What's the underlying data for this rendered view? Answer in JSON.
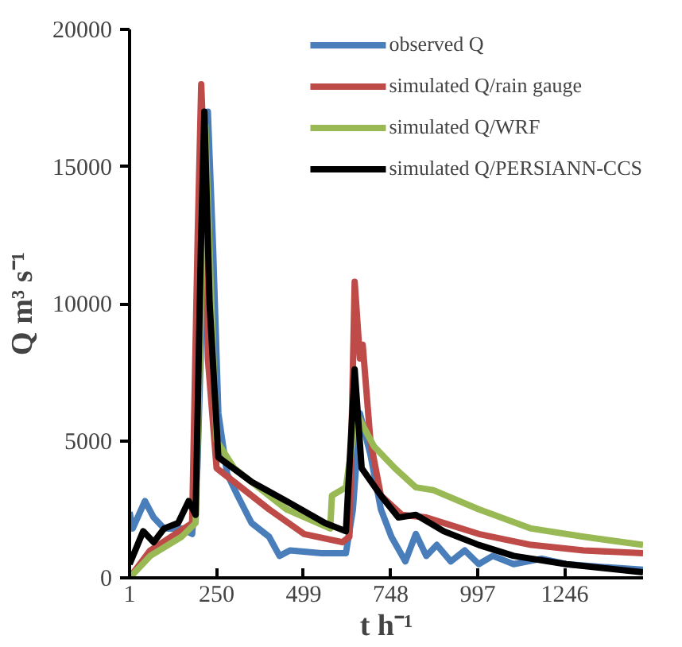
{
  "chart_data": {
    "type": "line",
    "xlabel": "t h⁻¹",
    "ylabel": "Q m³ s⁻¹",
    "xlim": [
      1,
      1470
    ],
    "xticks": [
      1,
      250,
      499,
      748,
      997,
      1246
    ],
    "ylim": [
      0,
      20000
    ],
    "yticks": [
      0,
      5000,
      10000,
      15000,
      20000
    ],
    "grid": false,
    "legend": "top right",
    "line_style": "solid",
    "marker": "none",
    "series": [
      {
        "name": "observed Q",
        "color": "#4a7ebb",
        "x": [
          1,
          10,
          45,
          70,
          100,
          150,
          180,
          195,
          225,
          240,
          255,
          280,
          310,
          350,
          400,
          430,
          460,
          550,
          620,
          640,
          660,
          690,
          720,
          750,
          790,
          820,
          850,
          880,
          920,
          960,
          1000,
          1040,
          1100,
          1180,
          1250,
          1350,
          1470
        ],
        "values": [
          2400,
          1800,
          2800,
          2200,
          1800,
          1800,
          1600,
          4000,
          17000,
          12000,
          6000,
          3800,
          3000,
          2000,
          1500,
          800,
          1000,
          900,
          900,
          2500,
          6000,
          4500,
          2500,
          1500,
          600,
          1600,
          800,
          1200,
          600,
          1000,
          500,
          800,
          500,
          700,
          500,
          400,
          300
        ]
      },
      {
        "name": "simulated Q/rain gauge",
        "color": "#be4b48",
        "x": [
          1,
          60,
          120,
          180,
          196,
          206,
          215,
          225,
          250,
          300,
          400,
          500,
          610,
          630,
          645,
          660,
          668,
          690,
          720,
          780,
          850,
          1000,
          1150,
          1300,
          1470
        ],
        "values": [
          0,
          1000,
          1500,
          2000,
          12500,
          18000,
          15000,
          8000,
          4000,
          3500,
          2500,
          1600,
          1300,
          1500,
          10800,
          8000,
          8500,
          5000,
          3000,
          2300,
          2200,
          1600,
          1200,
          1000,
          900
        ]
      },
      {
        "name": "simulated Q/WRF",
        "color": "#98b954",
        "x": [
          1,
          60,
          150,
          190,
          218,
          235,
          250,
          300,
          450,
          575,
          580,
          620,
          650,
          700,
          760,
          820,
          870,
          1000,
          1150,
          1300,
          1470
        ],
        "values": [
          0,
          800,
          1500,
          2000,
          16500,
          10000,
          5000,
          4000,
          2500,
          1800,
          3000,
          3300,
          6000,
          4800,
          4000,
          3300,
          3200,
          2500,
          1800,
          1500,
          1200
        ]
      },
      {
        "name": "simulated Q/PERSIANN-CCS",
        "color": "#000000",
        "x": [
          1,
          40,
          70,
          100,
          140,
          170,
          190,
          205,
          215,
          230,
          255,
          350,
          450,
          560,
          620,
          645,
          665,
          720,
          770,
          820,
          900,
          1000,
          1100,
          1250,
          1470
        ],
        "values": [
          500,
          1700,
          1300,
          1800,
          2000,
          2800,
          2300,
          12000,
          17000,
          10000,
          4400,
          3500,
          2800,
          2000,
          1700,
          7600,
          4000,
          3000,
          2200,
          2300,
          1700,
          1200,
          800,
          500,
          200
        ]
      }
    ]
  }
}
